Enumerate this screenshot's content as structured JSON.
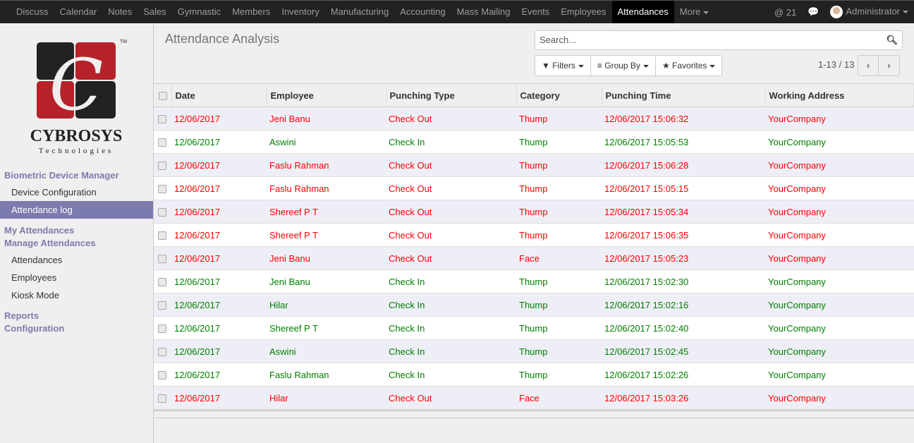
{
  "topbar": {
    "menu": [
      "Discuss",
      "Calendar",
      "Notes",
      "Sales",
      "Gymnastic",
      "Members",
      "Inventory",
      "Manufacturing",
      "Accounting",
      "Mass Mailing",
      "Events",
      "Employees",
      "Attendances",
      "More"
    ],
    "active": "Attendances",
    "mentions": "@ 21",
    "user": "Administrator"
  },
  "sidebar": {
    "logo_text": "CYBROSYS",
    "logo_sub": "Technologies",
    "logo_tm": "™",
    "sections": [
      {
        "title": "Biometric Device Manager",
        "items": [
          "Device Configuration",
          "Attendance log"
        ]
      },
      {
        "title": "My Attendances",
        "items": []
      },
      {
        "title": "Manage Attendances",
        "items": [
          "Attendances",
          "Employees",
          "Kiosk Mode"
        ]
      },
      {
        "title": "Reports",
        "items": []
      },
      {
        "title": "Configuration",
        "items": []
      }
    ],
    "selected": "Attendance log"
  },
  "main": {
    "title": "Attendance Analysis",
    "search_placeholder": "Search...",
    "filters": "Filters",
    "group_by": "Group By",
    "favorites": "Favorites",
    "pager": "1-13 / 13",
    "columns": [
      "Date",
      "Employee",
      "Punching Type",
      "Category",
      "Punching Time",
      "Working Address"
    ],
    "rows": [
      [
        "12/06/2017",
        "Jeni Banu",
        "Check Out",
        "Thump",
        "12/06/2017 15:06:32",
        "YourCompany"
      ],
      [
        "12/06/2017",
        "Aswini",
        "Check In",
        "Thump",
        "12/06/2017 15:05:53",
        "YourCompany"
      ],
      [
        "12/06/2017",
        "Faslu Rahman",
        "Check Out",
        "Thump",
        "12/06/2017 15:06:28",
        "YourCompany"
      ],
      [
        "12/06/2017",
        "Faslu Rahman",
        "Check Out",
        "Thump",
        "12/06/2017 15:05:15",
        "YourCompany"
      ],
      [
        "12/06/2017",
        "Shereef P T",
        "Check Out",
        "Thump",
        "12/06/2017 15:05:34",
        "YourCompany"
      ],
      [
        "12/06/2017",
        "Shereef P T",
        "Check Out",
        "Thump",
        "12/06/2017 15:06:35",
        "YourCompany"
      ],
      [
        "12/06/2017",
        "Jeni Banu",
        "Check Out",
        "Face",
        "12/06/2017 15:05:23",
        "YourCompany"
      ],
      [
        "12/06/2017",
        "Jeni Banu",
        "Check In",
        "Thump",
        "12/06/2017 15:02:30",
        "YourCompany"
      ],
      [
        "12/06/2017",
        "Hilar",
        "Check In",
        "Thump",
        "12/06/2017 15:02:16",
        "YourCompany"
      ],
      [
        "12/06/2017",
        "Shereef P T",
        "Check In",
        "Thump",
        "12/06/2017 15:02:40",
        "YourCompany"
      ],
      [
        "12/06/2017",
        "Aswini",
        "Check In",
        "Thump",
        "12/06/2017 15:02:45",
        "YourCompany"
      ],
      [
        "12/06/2017",
        "Faslu Rahman",
        "Check In",
        "Thump",
        "12/06/2017 15:02:26",
        "YourCompany"
      ],
      [
        "12/06/2017",
        "Hilar",
        "Check Out",
        "Face",
        "12/06/2017 15:03:26",
        "YourCompany"
      ]
    ]
  },
  "colors": {
    "check_out": "#ff0000",
    "check_in": "#008000",
    "selected": "#7c7bad"
  }
}
